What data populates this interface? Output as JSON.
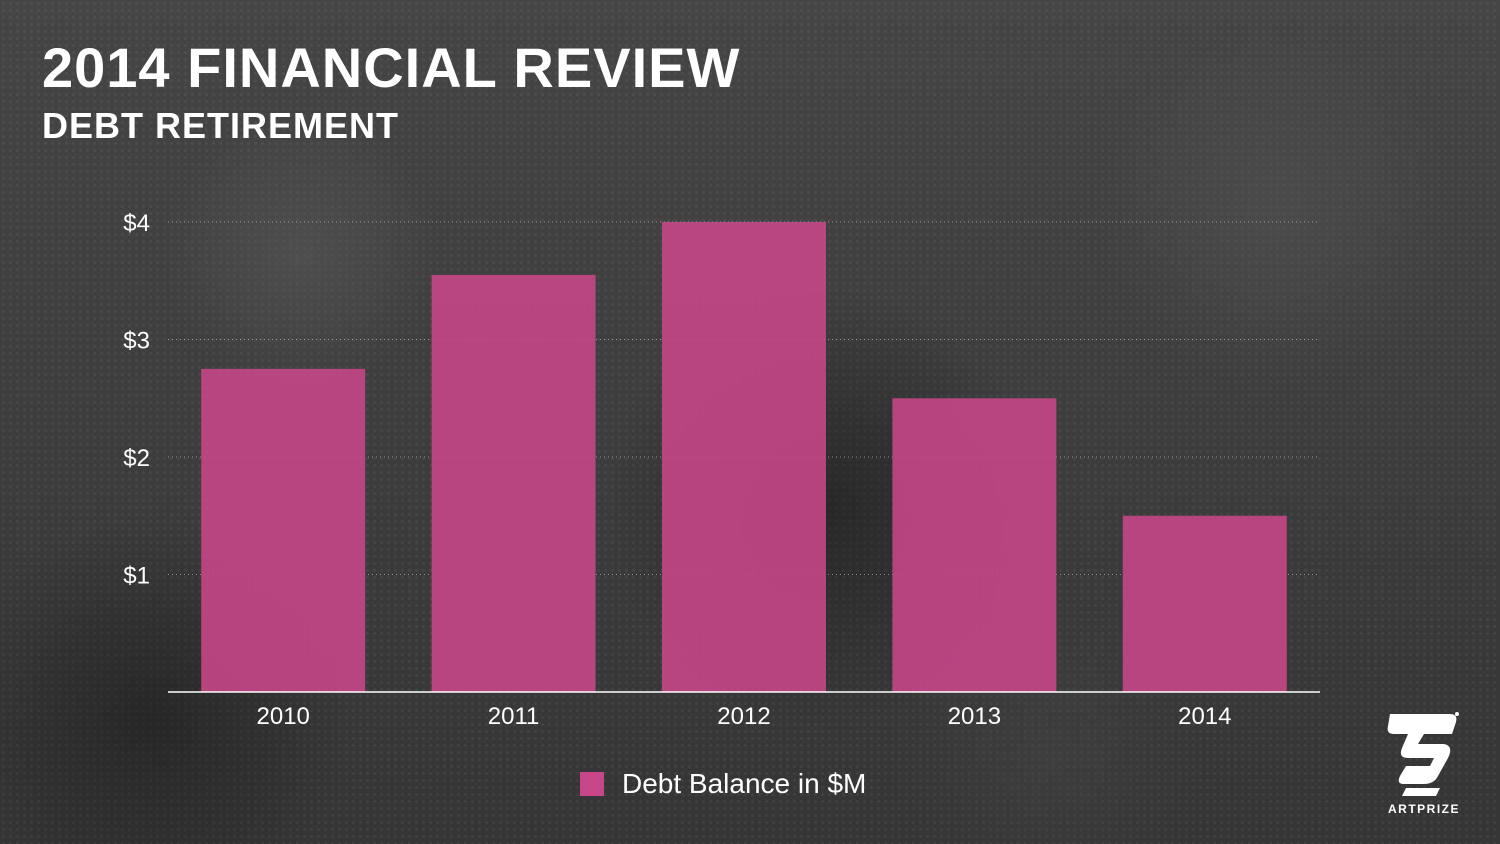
{
  "slide": {
    "title": "2014 FINANCIAL REVIEW",
    "subtitle": "DEBT RETIREMENT"
  },
  "chart_data": {
    "type": "bar",
    "categories": [
      "2010",
      "2011",
      "2012",
      "2013",
      "2014"
    ],
    "series": [
      {
        "name": "Debt Balance in $M",
        "values": [
          2.75,
          3.55,
          4.0,
          2.5,
          1.5
        ]
      }
    ],
    "ylim": [
      0,
      4
    ],
    "yticks": [
      1,
      2,
      3,
      4
    ],
    "ytick_labels": [
      "$1",
      "$2",
      "$3",
      "$4"
    ],
    "grid": true,
    "legend_position": "bottom-center",
    "bar_color": "#c8478a"
  },
  "logo": {
    "text": "ARTPRIZE",
    "icon": "artprize-logo-icon"
  }
}
